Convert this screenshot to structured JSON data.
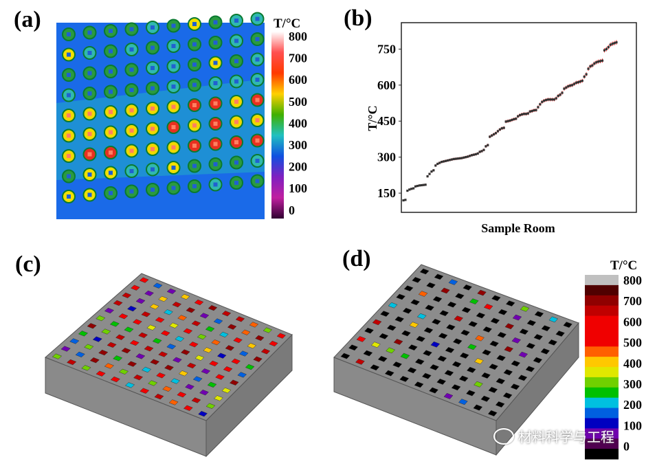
{
  "panels": {
    "a": {
      "label": "(a)",
      "colorbar_title": "T/°C",
      "colorbar_ticks": [
        "800",
        "700",
        "600",
        "500",
        "400",
        "300",
        "200",
        "100",
        "0"
      ],
      "colorbar_colors": [
        "#ffffff",
        "#ff5050",
        "#ff3a00",
        "#ffd000",
        "#40b000",
        "#20c0c0",
        "#1050e0",
        "#8020c0",
        "#c020a0",
        "#300030"
      ]
    },
    "b": {
      "label": "(b)"
    },
    "c": {
      "label": "(c)"
    },
    "d": {
      "label": "(d)",
      "colorbar_title": "T/°C",
      "colorbar_ticks": [
        "800",
        "700",
        "600",
        "500",
        "400",
        "300",
        "200",
        "100",
        "0"
      ],
      "colorbar_colors": [
        "#c0c0c0",
        "#500000",
        "#900000",
        "#c00000",
        "#f00000",
        "#f00000",
        "#f00000",
        "#ff6000",
        "#ffc800",
        "#e0e800",
        "#70d000",
        "#00c000",
        "#00c0e0",
        "#0060e0",
        "#0000c0",
        "#7000b0",
        "#500050",
        "#000000"
      ]
    }
  },
  "chart_data": {
    "type": "scatter",
    "title": "",
    "xlabel": "Sample Room",
    "ylabel": "T/°C",
    "ylim": [
      70,
      860
    ],
    "yticks": [
      150,
      300,
      450,
      600,
      750
    ],
    "grid": false,
    "error_bars": true,
    "marker_color": "#333333",
    "error_color": "#ff2020",
    "values": [
      120,
      122,
      160,
      165,
      168,
      170,
      178,
      180,
      182,
      183,
      184,
      185,
      220,
      230,
      240,
      245,
      265,
      272,
      276,
      280,
      282,
      284,
      286,
      288,
      290,
      292,
      293,
      294,
      295,
      296,
      298,
      300,
      302,
      305,
      308,
      310,
      312,
      315,
      322,
      325,
      330,
      345,
      350,
      385,
      390,
      395,
      400,
      408,
      415,
      420,
      422,
      448,
      450,
      452,
      455,
      458,
      460,
      470,
      475,
      478,
      480,
      480,
      482,
      490,
      492,
      495,
      496,
      508,
      520,
      530,
      535,
      538,
      540,
      540,
      540,
      540,
      545,
      555,
      560,
      568,
      585,
      590,
      595,
      598,
      600,
      605,
      610,
      612,
      615,
      618,
      635,
      645,
      668,
      678,
      682,
      690,
      695,
      698,
      700,
      702,
      745,
      750,
      758,
      768,
      772,
      775,
      778
    ]
  },
  "watermark": {
    "text": "材料科学与工程",
    "icon": "wechat-icon"
  }
}
